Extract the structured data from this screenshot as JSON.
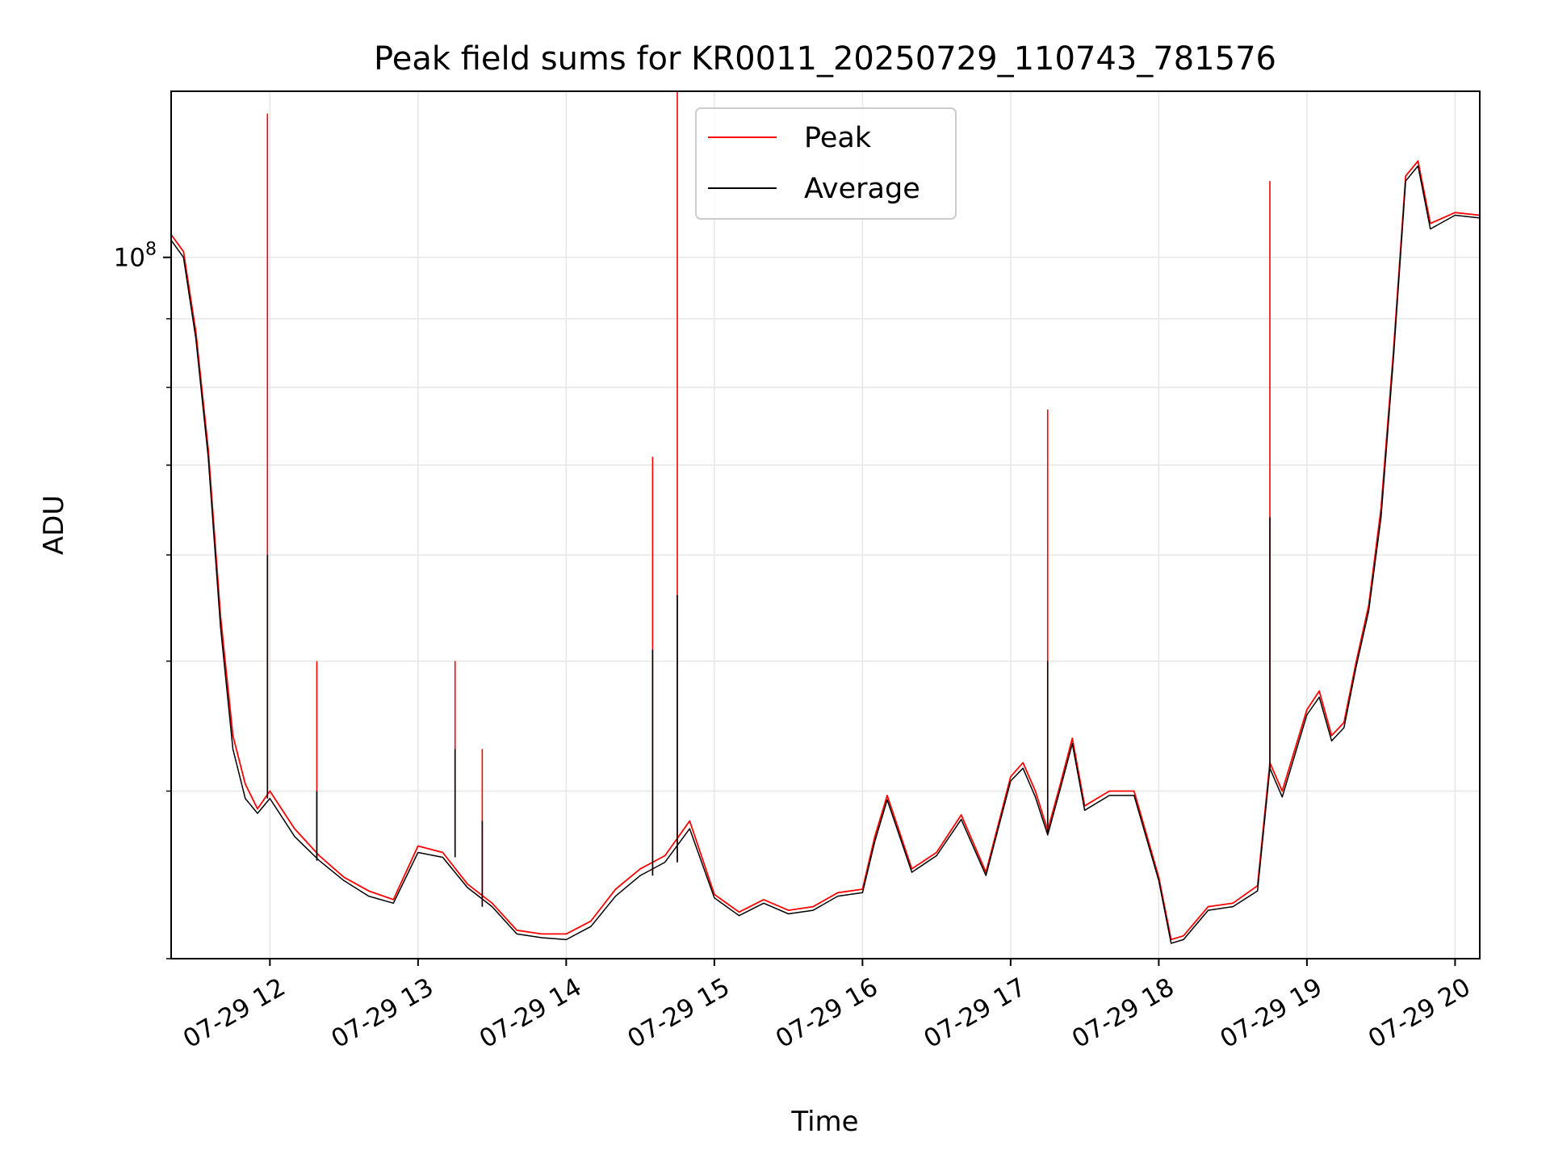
{
  "chart_data": {
    "type": "line",
    "title": "Peak field sums for KR0011_20250729_110743_781576",
    "xlabel": "Time",
    "ylabel": "ADU",
    "yscale": "log",
    "ylim": [
      30000000,
      133000000
    ],
    "xlim": [
      "2025-07-29 11:20",
      "2025-07-29 20:10"
    ],
    "grid": true,
    "legend_position": "upper center",
    "x_ticks": [
      {
        "value": "2025-07-29 12:00",
        "label": "07-29 12"
      },
      {
        "value": "2025-07-29 13:00",
        "label": "07-29 13"
      },
      {
        "value": "2025-07-29 14:00",
        "label": "07-29 14"
      },
      {
        "value": "2025-07-29 15:00",
        "label": "07-29 15"
      },
      {
        "value": "2025-07-29 16:00",
        "label": "07-29 16"
      },
      {
        "value": "2025-07-29 17:00",
        "label": "07-29 17"
      },
      {
        "value": "2025-07-29 18:00",
        "label": "07-29 18"
      },
      {
        "value": "2025-07-29 19:00",
        "label": "07-29 19"
      },
      {
        "value": "2025-07-29 20:00",
        "label": "07-29 20"
      }
    ],
    "y_ticks": [
      {
        "value": 100000000,
        "label": "10",
        "exponent": "8"
      }
    ],
    "y_minor_ticks": [
      30000000,
      40000000,
      50000000,
      60000000,
      70000000,
      80000000,
      90000000
    ],
    "series": [
      {
        "name": "Peak",
        "color": "#ff0000",
        "x": [
          "2025-07-29 11:20",
          "2025-07-29 11:25",
          "2025-07-29 11:30",
          "2025-07-29 11:35",
          "2025-07-29 11:40",
          "2025-07-29 11:45",
          "2025-07-29 11:50",
          "2025-07-29 11:55",
          "2025-07-29 12:00",
          "2025-07-29 12:10",
          "2025-07-29 12:20",
          "2025-07-29 12:30",
          "2025-07-29 12:40",
          "2025-07-29 12:50",
          "2025-07-29 13:00",
          "2025-07-29 13:10",
          "2025-07-29 13:20",
          "2025-07-29 13:30",
          "2025-07-29 13:40",
          "2025-07-29 13:50",
          "2025-07-29 14:00",
          "2025-07-29 14:10",
          "2025-07-29 14:20",
          "2025-07-29 14:30",
          "2025-07-29 14:40",
          "2025-07-29 14:50",
          "2025-07-29 15:00",
          "2025-07-29 15:10",
          "2025-07-29 15:20",
          "2025-07-29 15:30",
          "2025-07-29 15:40",
          "2025-07-29 15:50",
          "2025-07-29 16:00",
          "2025-07-29 16:05",
          "2025-07-29 16:10",
          "2025-07-29 16:20",
          "2025-07-29 16:30",
          "2025-07-29 16:40",
          "2025-07-29 16:50",
          "2025-07-29 17:00",
          "2025-07-29 17:05",
          "2025-07-29 17:10",
          "2025-07-29 17:15",
          "2025-07-29 17:20",
          "2025-07-29 17:25",
          "2025-07-29 17:30",
          "2025-07-29 17:40",
          "2025-07-29 17:50",
          "2025-07-29 18:00",
          "2025-07-29 18:05",
          "2025-07-29 18:10",
          "2025-07-29 18:20",
          "2025-07-29 18:30",
          "2025-07-29 18:40",
          "2025-07-29 18:45",
          "2025-07-29 18:50",
          "2025-07-29 19:00",
          "2025-07-29 19:05",
          "2025-07-29 19:10",
          "2025-07-29 19:15",
          "2025-07-29 19:20",
          "2025-07-29 19:25",
          "2025-07-29 19:30",
          "2025-07-29 19:35",
          "2025-07-29 19:40",
          "2025-07-29 19:45",
          "2025-07-29 19:50",
          "2025-07-29 20:00",
          "2025-07-29 20:10"
        ],
        "y": [
          104000000,
          101000000,
          88000000,
          72000000,
          54000000,
          44000000,
          40500000,
          38800000,
          40000000,
          37500000,
          35800000,
          34500000,
          33700000,
          33200000,
          36400000,
          36000000,
          34100000,
          33000000,
          31500000,
          31300000,
          31300000,
          32000000,
          33800000,
          35000000,
          35800000,
          38000000,
          33500000,
          32500000,
          33200000,
          32600000,
          32800000,
          33600000,
          33800000,
          37000000,
          39700000,
          35000000,
          36000000,
          38400000,
          34800000,
          41000000,
          42000000,
          40000000,
          37400000,
          40400000,
          43800000,
          39000000,
          40000000,
          40000000,
          34500000,
          31000000,
          31200000,
          32800000,
          33000000,
          34000000,
          42000000,
          40000000,
          46000000,
          47500000,
          44000000,
          45000000,
          50000000,
          55000000,
          65000000,
          85000000,
          115000000,
          118000000,
          106000000,
          108000000,
          107500000
        ]
      },
      {
        "name": "Average",
        "color": "#000000",
        "x": [
          "2025-07-29 11:20",
          "2025-07-29 11:25",
          "2025-07-29 11:30",
          "2025-07-29 11:35",
          "2025-07-29 11:40",
          "2025-07-29 11:45",
          "2025-07-29 11:50",
          "2025-07-29 11:55",
          "2025-07-29 12:00",
          "2025-07-29 12:10",
          "2025-07-29 12:20",
          "2025-07-29 12:30",
          "2025-07-29 12:40",
          "2025-07-29 12:50",
          "2025-07-29 13:00",
          "2025-07-29 13:10",
          "2025-07-29 13:20",
          "2025-07-29 13:30",
          "2025-07-29 13:40",
          "2025-07-29 13:50",
          "2025-07-29 14:00",
          "2025-07-29 14:10",
          "2025-07-29 14:20",
          "2025-07-29 14:30",
          "2025-07-29 14:40",
          "2025-07-29 14:50",
          "2025-07-29 15:00",
          "2025-07-29 15:10",
          "2025-07-29 15:20",
          "2025-07-29 15:30",
          "2025-07-29 15:40",
          "2025-07-29 15:50",
          "2025-07-29 16:00",
          "2025-07-29 16:05",
          "2025-07-29 16:10",
          "2025-07-29 16:20",
          "2025-07-29 16:30",
          "2025-07-29 16:40",
          "2025-07-29 16:50",
          "2025-07-29 17:00",
          "2025-07-29 17:05",
          "2025-07-29 17:10",
          "2025-07-29 17:15",
          "2025-07-29 17:20",
          "2025-07-29 17:25",
          "2025-07-29 17:30",
          "2025-07-29 17:40",
          "2025-07-29 17:50",
          "2025-07-29 18:00",
          "2025-07-29 18:05",
          "2025-07-29 18:10",
          "2025-07-29 18:20",
          "2025-07-29 18:30",
          "2025-07-29 18:40",
          "2025-07-29 18:45",
          "2025-07-29 18:50",
          "2025-07-29 19:00",
          "2025-07-29 19:05",
          "2025-07-29 19:10",
          "2025-07-29 19:15",
          "2025-07-29 19:20",
          "2025-07-29 19:25",
          "2025-07-29 19:30",
          "2025-07-29 19:35",
          "2025-07-29 19:40",
          "2025-07-29 19:45",
          "2025-07-29 19:50",
          "2025-07-29 20:00",
          "2025-07-29 20:10"
        ],
        "y": [
          103000000,
          100000000,
          87000000,
          71000000,
          53000000,
          43000000,
          39500000,
          38500000,
          39500000,
          37000000,
          35500000,
          34300000,
          33400000,
          33000000,
          36000000,
          35700000,
          33900000,
          32800000,
          31300000,
          31100000,
          31000000,
          31700000,
          33400000,
          34600000,
          35400000,
          37500000,
          33300000,
          32300000,
          33000000,
          32400000,
          32600000,
          33400000,
          33600000,
          36700000,
          39400000,
          34800000,
          35800000,
          38100000,
          34600000,
          40700000,
          41600000,
          39600000,
          37100000,
          40100000,
          43400000,
          38700000,
          39700000,
          39700000,
          34300000,
          30800000,
          31000000,
          32600000,
          32800000,
          33700000,
          41600000,
          39600000,
          45600000,
          47000000,
          43600000,
          44600000,
          49600000,
          54500000,
          64000000,
          84000000,
          114000000,
          117000000,
          105000000,
          107500000,
          107000000
        ]
      }
    ],
    "spikes": [
      {
        "x": "2025-07-29 11:59",
        "peak": 128000000,
        "average": 60000000
      },
      {
        "x": "2025-07-29 12:19",
        "peak": 50000000,
        "average": 40000000
      },
      {
        "x": "2025-07-29 13:15",
        "peak": 50000000,
        "average": 43000000
      },
      {
        "x": "2025-07-29 13:26",
        "peak": 43000000,
        "average": 38000000
      },
      {
        "x": "2025-07-29 14:35",
        "peak": 71000000,
        "average": 51000000
      },
      {
        "x": "2025-07-29 14:45",
        "peak": 134000000,
        "average": 56000000
      },
      {
        "x": "2025-07-29 17:15",
        "peak": 77000000,
        "average": 50000000
      },
      {
        "x": "2025-07-29 18:45",
        "peak": 114000000,
        "average": 64000000
      }
    ]
  }
}
